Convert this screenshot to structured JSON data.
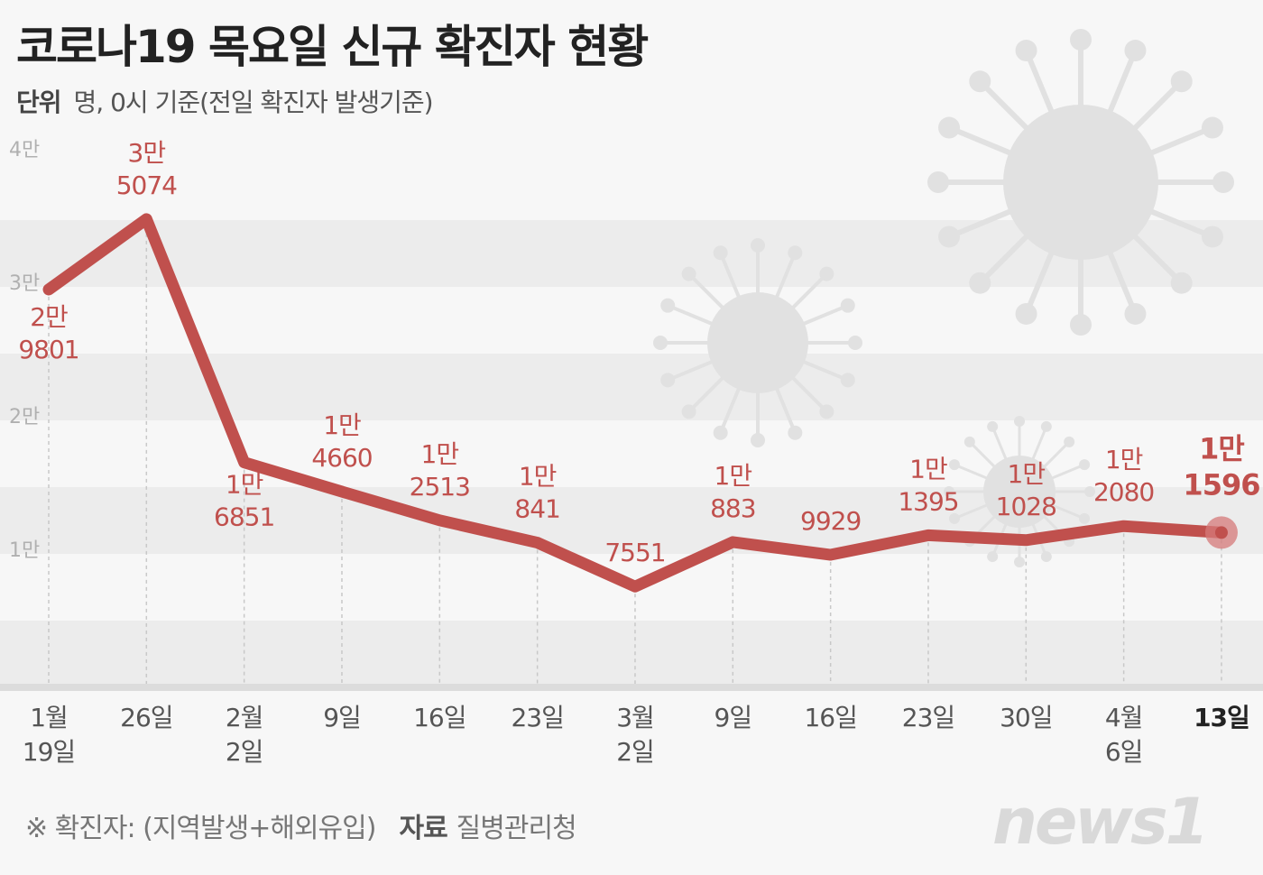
{
  "title": "코로나19 목요일 신규 확진자 현황",
  "unit_label": "단위",
  "unit_text": "명, 0시 기준(전일 확진자 발생기준)",
  "footnote": "※ 확진자: (지역발생+해외유입)",
  "source_label": "자료",
  "source_text": "질병관리청",
  "logo": "news1",
  "colors": {
    "line": "#c0504d",
    "band": "#ececec",
    "accent": "#b24a4a"
  },
  "chart_data": {
    "type": "line",
    "ylim": [
      0,
      40000
    ],
    "yticks": [
      {
        "value": 10000,
        "label": "1만"
      },
      {
        "value": 20000,
        "label": "2만"
      },
      {
        "value": 30000,
        "label": "3만"
      },
      {
        "value": 40000,
        "label": "4만"
      }
    ],
    "categories": [
      "1월 19일",
      "26일",
      "2월 2일",
      "9일",
      "16일",
      "23일",
      "3월 2일",
      "9일",
      "16일",
      "23일",
      "30일",
      "4월 6일",
      "13일"
    ],
    "category_lines": [
      [
        "1월",
        "19일"
      ],
      [
        "26일"
      ],
      [
        "2월",
        "2일"
      ],
      [
        "9일"
      ],
      [
        "16일"
      ],
      [
        "23일"
      ],
      [
        "3월",
        "2일"
      ],
      [
        "9일"
      ],
      [
        "16일"
      ],
      [
        "23일"
      ],
      [
        "30일"
      ],
      [
        "4월",
        "6일"
      ],
      [
        "13일"
      ]
    ],
    "values": [
      29801,
      35074,
      16851,
      14660,
      12513,
      10841,
      7551,
      10883,
      9929,
      11395,
      11028,
      12080,
      11596
    ],
    "value_labels": [
      [
        "2만",
        "9801"
      ],
      [
        "3만",
        "5074"
      ],
      [
        "1만",
        "6851"
      ],
      [
        "1만",
        "4660"
      ],
      [
        "1만",
        "2513"
      ],
      [
        "1만",
        "841"
      ],
      [
        "7551"
      ],
      [
        "1만",
        "883"
      ],
      [
        "9929"
      ],
      [
        "1만",
        "1395"
      ],
      [
        "1만",
        "1028"
      ],
      [
        "1만",
        "2080"
      ],
      [
        "1만",
        "1596"
      ]
    ],
    "highlight_index": 12
  }
}
